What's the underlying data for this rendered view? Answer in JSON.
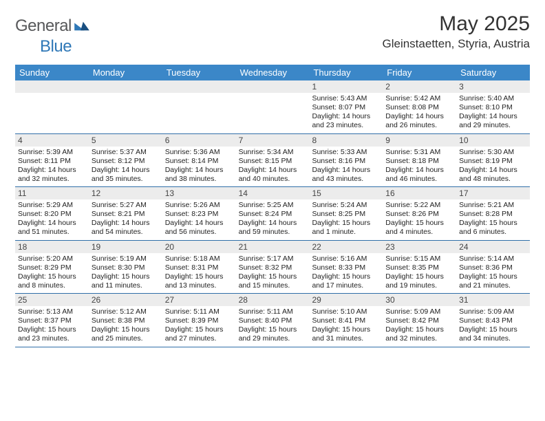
{
  "brand": {
    "textA": "General",
    "textB": "Blue"
  },
  "title": "May 2025",
  "location": "Gleinstaetten, Styria, Austria",
  "colors": {
    "headerBar": "#3b87c8",
    "bandBg": "#ececec",
    "rule": "#2f6ea8",
    "logoGray": "#57585a",
    "logoBlue": "#2f78b7"
  },
  "daysOfWeek": [
    "Sunday",
    "Monday",
    "Tuesday",
    "Wednesday",
    "Thursday",
    "Friday",
    "Saturday"
  ],
  "weeks": [
    [
      null,
      null,
      null,
      null,
      {
        "n": "1",
        "sunrise": "5:43 AM",
        "sunset": "8:07 PM",
        "daylight": "14 hours and 23 minutes."
      },
      {
        "n": "2",
        "sunrise": "5:42 AM",
        "sunset": "8:08 PM",
        "daylight": "14 hours and 26 minutes."
      },
      {
        "n": "3",
        "sunrise": "5:40 AM",
        "sunset": "8:10 PM",
        "daylight": "14 hours and 29 minutes."
      }
    ],
    [
      {
        "n": "4",
        "sunrise": "5:39 AM",
        "sunset": "8:11 PM",
        "daylight": "14 hours and 32 minutes."
      },
      {
        "n": "5",
        "sunrise": "5:37 AM",
        "sunset": "8:12 PM",
        "daylight": "14 hours and 35 minutes."
      },
      {
        "n": "6",
        "sunrise": "5:36 AM",
        "sunset": "8:14 PM",
        "daylight": "14 hours and 38 minutes."
      },
      {
        "n": "7",
        "sunrise": "5:34 AM",
        "sunset": "8:15 PM",
        "daylight": "14 hours and 40 minutes."
      },
      {
        "n": "8",
        "sunrise": "5:33 AM",
        "sunset": "8:16 PM",
        "daylight": "14 hours and 43 minutes."
      },
      {
        "n": "9",
        "sunrise": "5:31 AM",
        "sunset": "8:18 PM",
        "daylight": "14 hours and 46 minutes."
      },
      {
        "n": "10",
        "sunrise": "5:30 AM",
        "sunset": "8:19 PM",
        "daylight": "14 hours and 48 minutes."
      }
    ],
    [
      {
        "n": "11",
        "sunrise": "5:29 AM",
        "sunset": "8:20 PM",
        "daylight": "14 hours and 51 minutes."
      },
      {
        "n": "12",
        "sunrise": "5:27 AM",
        "sunset": "8:21 PM",
        "daylight": "14 hours and 54 minutes."
      },
      {
        "n": "13",
        "sunrise": "5:26 AM",
        "sunset": "8:23 PM",
        "daylight": "14 hours and 56 minutes."
      },
      {
        "n": "14",
        "sunrise": "5:25 AM",
        "sunset": "8:24 PM",
        "daylight": "14 hours and 59 minutes."
      },
      {
        "n": "15",
        "sunrise": "5:24 AM",
        "sunset": "8:25 PM",
        "daylight": "15 hours and 1 minute."
      },
      {
        "n": "16",
        "sunrise": "5:22 AM",
        "sunset": "8:26 PM",
        "daylight": "15 hours and 4 minutes."
      },
      {
        "n": "17",
        "sunrise": "5:21 AM",
        "sunset": "8:28 PM",
        "daylight": "15 hours and 6 minutes."
      }
    ],
    [
      {
        "n": "18",
        "sunrise": "5:20 AM",
        "sunset": "8:29 PM",
        "daylight": "15 hours and 8 minutes."
      },
      {
        "n": "19",
        "sunrise": "5:19 AM",
        "sunset": "8:30 PM",
        "daylight": "15 hours and 11 minutes."
      },
      {
        "n": "20",
        "sunrise": "5:18 AM",
        "sunset": "8:31 PM",
        "daylight": "15 hours and 13 minutes."
      },
      {
        "n": "21",
        "sunrise": "5:17 AM",
        "sunset": "8:32 PM",
        "daylight": "15 hours and 15 minutes."
      },
      {
        "n": "22",
        "sunrise": "5:16 AM",
        "sunset": "8:33 PM",
        "daylight": "15 hours and 17 minutes."
      },
      {
        "n": "23",
        "sunrise": "5:15 AM",
        "sunset": "8:35 PM",
        "daylight": "15 hours and 19 minutes."
      },
      {
        "n": "24",
        "sunrise": "5:14 AM",
        "sunset": "8:36 PM",
        "daylight": "15 hours and 21 minutes."
      }
    ],
    [
      {
        "n": "25",
        "sunrise": "5:13 AM",
        "sunset": "8:37 PM",
        "daylight": "15 hours and 23 minutes."
      },
      {
        "n": "26",
        "sunrise": "5:12 AM",
        "sunset": "8:38 PM",
        "daylight": "15 hours and 25 minutes."
      },
      {
        "n": "27",
        "sunrise": "5:11 AM",
        "sunset": "8:39 PM",
        "daylight": "15 hours and 27 minutes."
      },
      {
        "n": "28",
        "sunrise": "5:11 AM",
        "sunset": "8:40 PM",
        "daylight": "15 hours and 29 minutes."
      },
      {
        "n": "29",
        "sunrise": "5:10 AM",
        "sunset": "8:41 PM",
        "daylight": "15 hours and 31 minutes."
      },
      {
        "n": "30",
        "sunrise": "5:09 AM",
        "sunset": "8:42 PM",
        "daylight": "15 hours and 32 minutes."
      },
      {
        "n": "31",
        "sunrise": "5:09 AM",
        "sunset": "8:43 PM",
        "daylight": "15 hours and 34 minutes."
      }
    ]
  ],
  "labels": {
    "sunrise": "Sunrise:",
    "sunset": "Sunset:",
    "daylight": "Daylight:"
  }
}
